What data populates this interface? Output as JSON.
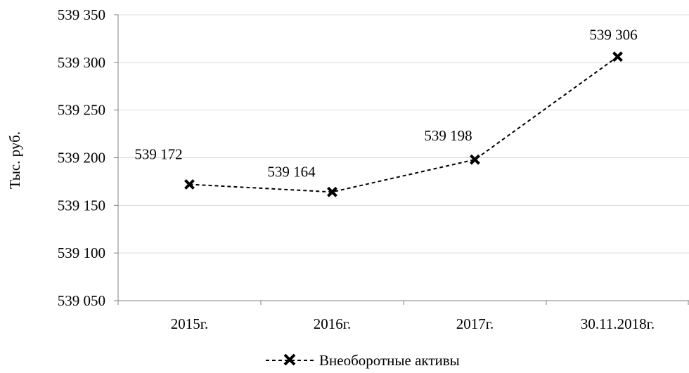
{
  "chart_data": {
    "type": "line",
    "categories": [
      "2015г.",
      "2016г.",
      "2017г.",
      "30.11.2018г."
    ],
    "series": [
      {
        "name": "Внеоборотные активы",
        "values": [
          539172,
          539164,
          539198,
          539306
        ],
        "data_labels": [
          "539 172",
          "539 164",
          "539 198",
          "539 306"
        ]
      }
    ],
    "ylabel": "Тыс. руб.",
    "ylim": [
      539050,
      539350
    ],
    "yticks": [
      539050,
      539100,
      539150,
      539200,
      539250,
      539300,
      539350
    ],
    "ytick_labels": [
      "539 050",
      "539 100",
      "539 150",
      "539 200",
      "539 250",
      "539 300",
      "539 350"
    ],
    "grid": true,
    "legend": "bottom",
    "line_style": "dashed",
    "marker": "x",
    "colors": {
      "line": "#000000",
      "grid": "#d9d9d9",
      "axis": "#808080"
    }
  }
}
